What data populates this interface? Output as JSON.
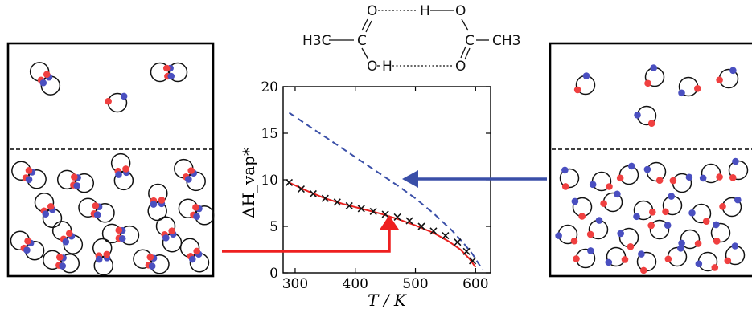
{
  "molecule": {
    "top_left": "O",
    "top_hbond_h": "H",
    "top_right": "O",
    "left_group": "H3C",
    "left_carbon": "C",
    "right_carbon": "C",
    "right_group": "CH3",
    "bottom_left": "O",
    "bottom_hbond_h": "H",
    "bottom_right": "O"
  },
  "colors": {
    "dimer_curve": "#e8201e",
    "monomer_curve": "#3a4fa8",
    "oxygen_atom": "#f04040",
    "hydrogen_atom": "#4a4fc0",
    "arrow_red": "#ee2020",
    "arrow_blue": "#3a4fa8"
  },
  "chart_data": {
    "type": "line",
    "title": "",
    "xlabel": "T / K",
    "ylabel": "ΔH_vap*",
    "xlim": [
      280,
      625
    ],
    "ylim": [
      0,
      20
    ],
    "xticks": [
      300,
      400,
      500,
      600
    ],
    "yticks": [
      0,
      5,
      10,
      15,
      20
    ],
    "grid": false,
    "series": [
      {
        "style": "dashed",
        "color": "#3a4fa8",
        "x": [
          290,
          320,
          350,
          380,
          410,
          440,
          470,
          500,
          530,
          560,
          580,
          595,
          605,
          612
        ],
        "y": [
          17.2,
          15.9,
          14.6,
          13.3,
          12.0,
          10.7,
          9.4,
          8.0,
          6.4,
          4.6,
          3.2,
          2.0,
          1.0,
          0.3
        ]
      },
      {
        "style": "solid",
        "color": "#e8201e",
        "x": [
          290,
          320,
          350,
          380,
          410,
          440,
          470,
          500,
          530,
          555,
          575,
          590,
          600
        ],
        "y": [
          9.7,
          8.8,
          8.0,
          7.4,
          6.9,
          6.4,
          5.8,
          5.1,
          4.3,
          3.4,
          2.5,
          1.5,
          0.6
        ]
      },
      {
        "style": "markers",
        "marker": "x",
        "color": "#111111",
        "x": [
          290,
          310,
          330,
          350,
          370,
          390,
          410,
          430,
          450,
          470,
          490,
          510,
          530,
          550,
          570,
          585,
          595
        ],
        "y": [
          9.7,
          9.0,
          8.5,
          8.0,
          7.6,
          7.2,
          6.9,
          6.6,
          6.3,
          6.0,
          5.6,
          5.0,
          4.5,
          4.0,
          3.3,
          2.3,
          1.3
        ]
      }
    ]
  }
}
